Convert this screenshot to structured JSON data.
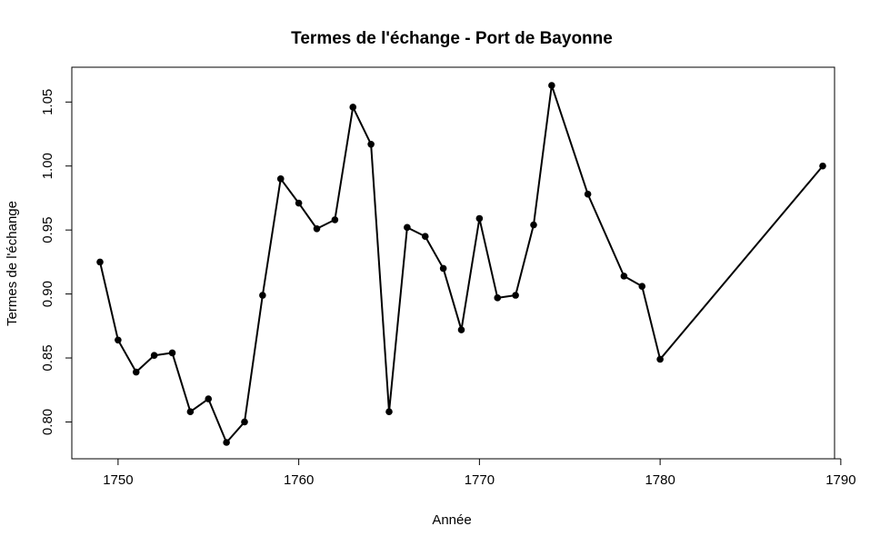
{
  "chart_data": {
    "type": "line",
    "title": "Termes de l'échange - Port de Bayonne",
    "xlabel": "Année",
    "ylabel": "Termes de l'échange",
    "xlim": [
      1749,
      1789
    ],
    "ylim": [
      0.784,
      1.063
    ],
    "x_ticks": [
      1750,
      1760,
      1770,
      1780,
      1790
    ],
    "y_ticks": [
      0.8,
      0.85,
      0.9,
      0.95,
      1.0,
      1.05
    ],
    "x_tick_labels": [
      "1750",
      "1760",
      "1770",
      "1780",
      "1790"
    ],
    "y_tick_labels": [
      "0.80",
      "0.85",
      "0.90",
      "0.95",
      "1.00",
      "1.05"
    ],
    "grid": false,
    "legend": "none",
    "marker": "filled-circle",
    "line_color": "#000000",
    "series": [
      {
        "x": [
          1749,
          1750,
          1751,
          1752,
          1753,
          1754,
          1755,
          1756,
          1757,
          1758,
          1759,
          1760,
          1761,
          1762,
          1763,
          1764,
          1765,
          1766,
          1767,
          1768,
          1769,
          1770,
          1771,
          1772,
          1773,
          1774,
          1776,
          1778,
          1779,
          1780,
          1789
        ],
        "values": [
          0.925,
          0.864,
          0.839,
          0.852,
          0.854,
          0.808,
          0.818,
          0.784,
          0.8,
          0.899,
          0.99,
          0.971,
          0.951,
          0.958,
          1.046,
          1.017,
          0.808,
          0.952,
          0.945,
          0.92,
          0.872,
          0.959,
          0.897,
          0.899,
          0.954,
          1.063,
          0.978,
          0.914,
          0.906,
          0.849,
          1.0
        ]
      }
    ]
  }
}
